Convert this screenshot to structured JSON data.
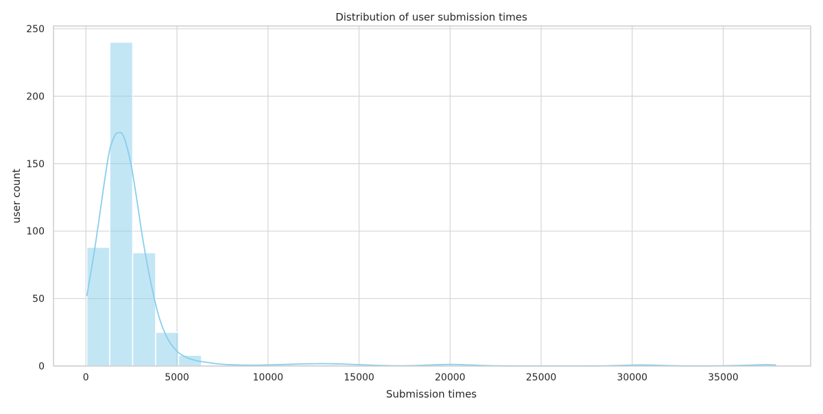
{
  "chart_data": {
    "type": "bar",
    "subtype": "histogram-with-kde",
    "title": "Distribution of user submission times",
    "xlabel": "Submission times",
    "ylabel": "user count",
    "xlim": [
      -1780,
      39800
    ],
    "ylim": [
      0,
      252
    ],
    "x_ticks": [
      0,
      5000,
      10000,
      15000,
      20000,
      25000,
      30000,
      35000
    ],
    "x_tick_labels": [
      "0",
      "5000",
      "10000",
      "15000",
      "20000",
      "25000",
      "30000",
      "35000"
    ],
    "y_ticks": [
      0,
      50,
      100,
      150,
      200,
      250
    ],
    "y_tick_labels": [
      "0",
      "50",
      "100",
      "150",
      "200",
      "250"
    ],
    "grid": true,
    "bins": [
      {
        "x0": 50,
        "x1": 1310,
        "value": 88
      },
      {
        "x0": 1310,
        "x1": 2570,
        "value": 240
      },
      {
        "x0": 2570,
        "x1": 3830,
        "value": 84
      },
      {
        "x0": 3830,
        "x1": 5090,
        "value": 25
      },
      {
        "x0": 5090,
        "x1": 6350,
        "value": 8
      },
      {
        "x0": 6350,
        "x1": 7610,
        "value": 0
      },
      {
        "x0": 7610,
        "x1": 8870,
        "value": 0
      },
      {
        "x0": 8870,
        "x1": 10130,
        "value": 0
      },
      {
        "x0": 10130,
        "x1": 11390,
        "value": 1
      },
      {
        "x0": 11390,
        "x1": 12650,
        "value": 1
      },
      {
        "x0": 12650,
        "x1": 13910,
        "value": 1
      },
      {
        "x0": 13910,
        "x1": 15170,
        "value": 0
      },
      {
        "x0": 15170,
        "x1": 16430,
        "value": 0
      },
      {
        "x0": 16430,
        "x1": 17690,
        "value": 0
      },
      {
        "x0": 17690,
        "x1": 18950,
        "value": 0
      },
      {
        "x0": 18950,
        "x1": 20210,
        "value": 1
      },
      {
        "x0": 20210,
        "x1": 21470,
        "value": 0
      },
      {
        "x0": 21470,
        "x1": 22730,
        "value": 0
      },
      {
        "x0": 22730,
        "x1": 23990,
        "value": 0
      },
      {
        "x0": 23990,
        "x1": 25250,
        "value": 0
      },
      {
        "x0": 25250,
        "x1": 26510,
        "value": 0
      },
      {
        "x0": 26510,
        "x1": 27770,
        "value": 0
      },
      {
        "x0": 27770,
        "x1": 29030,
        "value": 0
      },
      {
        "x0": 29030,
        "x1": 30290,
        "value": 0
      },
      {
        "x0": 30290,
        "x1": 31550,
        "value": 1
      },
      {
        "x0": 31550,
        "x1": 32810,
        "value": 0
      },
      {
        "x0": 32810,
        "x1": 34070,
        "value": 0
      },
      {
        "x0": 34070,
        "x1": 35330,
        "value": 0
      },
      {
        "x0": 35330,
        "x1": 36590,
        "value": 0
      },
      {
        "x0": 36590,
        "x1": 37850,
        "value": 1
      }
    ],
    "kde": {
      "x": [
        50,
        500,
        1000,
        1300,
        1600,
        1800,
        2000,
        2200,
        2500,
        2800,
        3100,
        3500,
        4000,
        4500,
        5000,
        5500,
        6000,
        6500,
        7000,
        7500,
        8000,
        9000,
        10000,
        11000,
        12000,
        13000,
        14000,
        15000,
        16000,
        17000,
        18000,
        19000,
        20000,
        21000,
        22000,
        23000,
        25000,
        28000,
        29500,
        30500,
        31500,
        33000,
        35000,
        36500,
        37300,
        37900
      ],
      "y": [
        52,
        88,
        135,
        160,
        171,
        173,
        172,
        165,
        148,
        123,
        96,
        66,
        37,
        20,
        11,
        6.5,
        4.2,
        3.0,
        2.0,
        1.3,
        0.9,
        0.6,
        0.8,
        1.2,
        1.6,
        1.8,
        1.5,
        1.0,
        0.5,
        0.2,
        0.3,
        0.8,
        1.2,
        0.8,
        0.3,
        0.1,
        0.05,
        0.1,
        0.5,
        0.8,
        0.5,
        0.1,
        0.2,
        0.6,
        1.0,
        0.7
      ]
    },
    "colors": {
      "bar_fill": "#87ceeb",
      "bar_opacity": 0.5,
      "kde_line": "#87ceeb",
      "grid": "#d5d5d5",
      "frame": "#cccccc",
      "background": "#ffffff"
    }
  }
}
